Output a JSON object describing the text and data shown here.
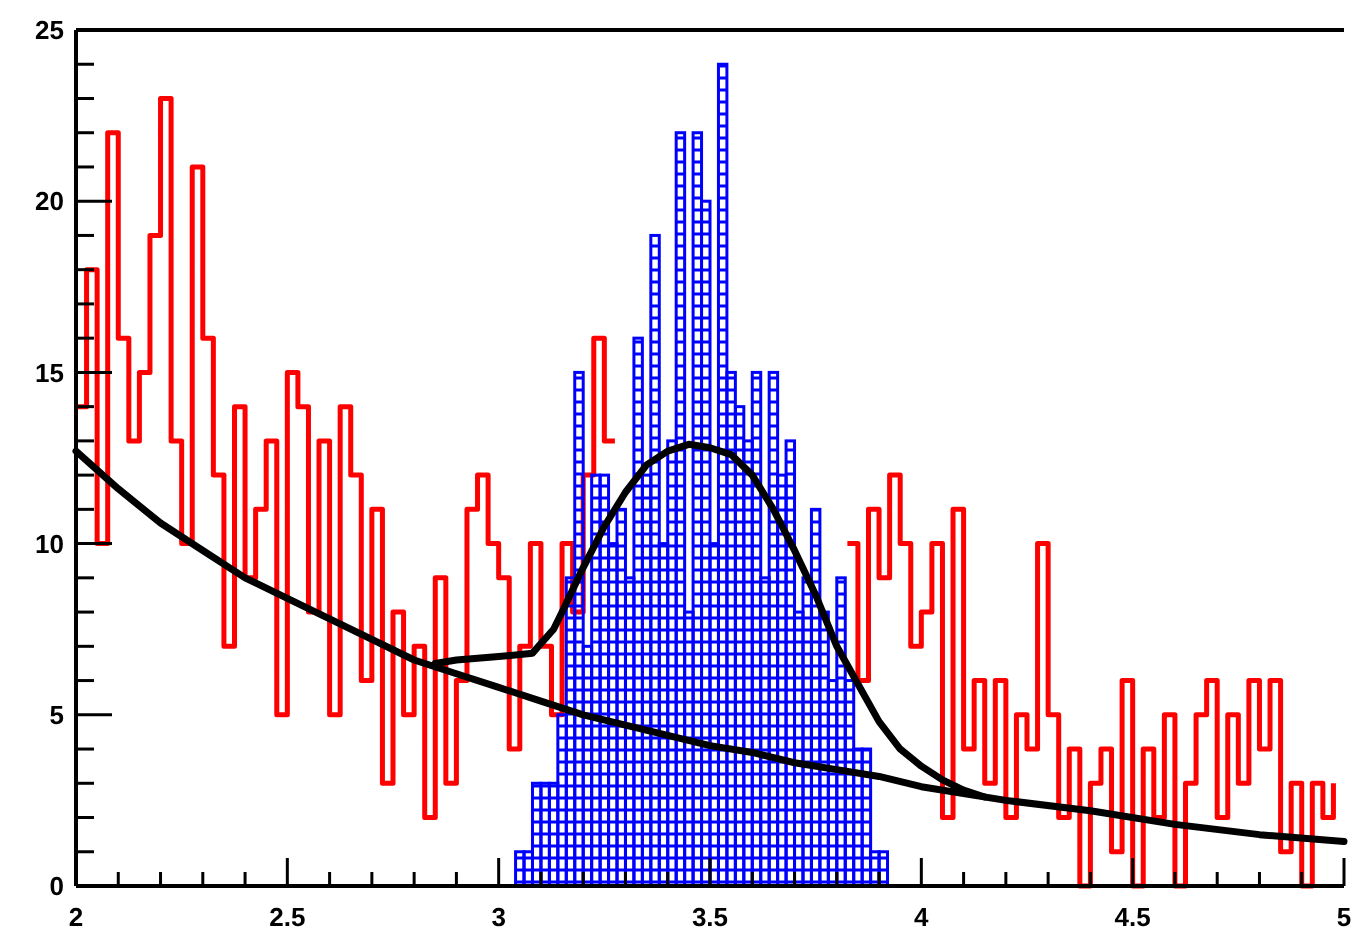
{
  "chart_data": {
    "type": "histogram",
    "xlim": [
      2,
      5
    ],
    "ylim": [
      0,
      25
    ],
    "xticks": [
      {
        "value": 2,
        "label": "2"
      },
      {
        "value": 2.1,
        "label": null
      },
      {
        "value": 2.2,
        "label": null
      },
      {
        "value": 2.3,
        "label": null
      },
      {
        "value": 2.4,
        "label": null
      },
      {
        "value": 2.5,
        "label": "2.5"
      },
      {
        "value": 2.6,
        "label": null
      },
      {
        "value": 2.7,
        "label": null
      },
      {
        "value": 2.8,
        "label": null
      },
      {
        "value": 2.9,
        "label": null
      },
      {
        "value": 3,
        "label": "3"
      },
      {
        "value": 3.1,
        "label": null
      },
      {
        "value": 3.2,
        "label": null
      },
      {
        "value": 3.3,
        "label": null
      },
      {
        "value": 3.4,
        "label": null
      },
      {
        "value": 3.5,
        "label": "3.5"
      },
      {
        "value": 3.6,
        "label": null
      },
      {
        "value": 3.7,
        "label": null
      },
      {
        "value": 3.8,
        "label": null
      },
      {
        "value": 3.9,
        "label": null
      },
      {
        "value": 4,
        "label": "4"
      },
      {
        "value": 4.1,
        "label": null
      },
      {
        "value": 4.2,
        "label": null
      },
      {
        "value": 4.3,
        "label": null
      },
      {
        "value": 4.4,
        "label": null
      },
      {
        "value": 4.5,
        "label": "4.5"
      },
      {
        "value": 4.6,
        "label": null
      },
      {
        "value": 4.7,
        "label": null
      },
      {
        "value": 4.8,
        "label": null
      },
      {
        "value": 4.9,
        "label": null
      },
      {
        "value": 5,
        "label": "5"
      }
    ],
    "yticks": [
      {
        "value": 0,
        "label": "0"
      },
      {
        "value": 1,
        "label": null
      },
      {
        "value": 2,
        "label": null
      },
      {
        "value": 3,
        "label": null
      },
      {
        "value": 4,
        "label": null
      },
      {
        "value": 5,
        "label": "5"
      },
      {
        "value": 6,
        "label": null
      },
      {
        "value": 7,
        "label": null
      },
      {
        "value": 8,
        "label": null
      },
      {
        "value": 9,
        "label": null
      },
      {
        "value": 10,
        "label": "10"
      },
      {
        "value": 11,
        "label": null
      },
      {
        "value": 12,
        "label": null
      },
      {
        "value": 13,
        "label": null
      },
      {
        "value": 14,
        "label": null
      },
      {
        "value": 15,
        "label": "15"
      },
      {
        "value": 16,
        "label": null
      },
      {
        "value": 17,
        "label": null
      },
      {
        "value": 18,
        "label": null
      },
      {
        "value": 19,
        "label": null
      },
      {
        "value": 20,
        "label": "20"
      },
      {
        "value": 21,
        "label": null
      },
      {
        "value": 22,
        "label": null
      },
      {
        "value": 23,
        "label": null
      },
      {
        "value": 24,
        "label": null
      },
      {
        "value": 25,
        "label": "25"
      }
    ],
    "grid": false,
    "series": [
      {
        "type": "step",
        "color": "#ff0000",
        "x": [
          2,
          2.025,
          2.05,
          2.075,
          2.1,
          2.125,
          2.15,
          2.175,
          2.2,
          2.225,
          2.25,
          2.275,
          2.3,
          2.325,
          2.35,
          2.375,
          2.4,
          2.425,
          2.45,
          2.475,
          2.5,
          2.525,
          2.55,
          2.575,
          2.6,
          2.625,
          2.65,
          2.675,
          2.7,
          2.725,
          2.75,
          2.775,
          2.8,
          2.825,
          2.85,
          2.875,
          2.9,
          2.925,
          2.95,
          2.975,
          3,
          3.025,
          3.05,
          3.075,
          3.1,
          3.125,
          3.15,
          3.175,
          3.2,
          3.225,
          3.25,
          3.275,
          3.3,
          3.325,
          3.35,
          3.375,
          3.4,
          3.425,
          3.45,
          3.475,
          3.5,
          3.525,
          3.55,
          3.575,
          3.6,
          3.625,
          3.65,
          3.675,
          3.7,
          3.725,
          3.75,
          3.775,
          3.8,
          3.825,
          3.85,
          3.875,
          3.9,
          3.925,
          3.95,
          3.975,
          4,
          4.025,
          4.05,
          4.075,
          4.1,
          4.125,
          4.15,
          4.175,
          4.2,
          4.225,
          4.25,
          4.275,
          4.3,
          4.325,
          4.35,
          4.375,
          4.4,
          4.425,
          4.45,
          4.475,
          4.5,
          4.525,
          4.55,
          4.575,
          4.6,
          4.625,
          4.65,
          4.675,
          4.7,
          4.725,
          4.75,
          4.775,
          4.8,
          4.825,
          4.85,
          4.875,
          4.9,
          4.925,
          4.95,
          4.975
        ],
        "values": [
          14,
          18,
          10,
          22,
          16,
          13,
          15,
          19,
          23,
          13,
          10,
          21,
          16,
          12,
          7,
          14,
          9,
          11,
          13,
          5,
          15,
          14,
          8,
          13,
          5,
          14,
          12,
          6,
          11,
          3,
          8,
          5,
          7,
          2,
          9,
          3,
          6,
          11,
          12,
          10,
          9,
          4,
          7,
          10,
          7,
          5,
          10,
          8,
          12,
          16,
          13,
          null,
          null,
          null,
          null,
          null,
          null,
          null,
          null,
          null,
          null,
          null,
          null,
          null,
          null,
          null,
          null,
          null,
          null,
          null,
          null,
          null,
          null,
          10,
          6,
          11,
          9,
          12,
          10,
          7,
          8,
          10,
          2,
          11,
          4,
          6,
          3,
          6,
          2,
          5,
          4,
          10,
          5,
          2,
          4,
          0,
          3,
          4,
          1,
          6,
          0,
          4,
          2,
          5,
          0,
          3,
          5,
          6,
          2,
          5,
          3,
          6,
          4,
          6,
          1,
          3,
          0,
          3,
          2,
          3
        ]
      },
      {
        "color": "#0000ff",
        "bins": [
          3.04,
          3.06,
          3.08,
          3.1,
          3.12,
          3.14,
          3.16,
          3.18,
          3.2,
          3.22,
          3.24,
          3.26,
          3.28,
          3.3,
          3.32,
          3.34,
          3.36,
          3.38,
          3.4,
          3.42,
          3.44,
          3.46,
          3.48,
          3.5,
          3.52,
          3.54,
          3.56,
          3.58,
          3.6,
          3.62,
          3.64,
          3.66,
          3.68,
          3.7,
          3.72,
          3.74,
          3.76,
          3.78,
          3.8,
          3.82,
          3.84,
          3.86,
          3.88,
          3.9,
          3.92
        ],
        "values": [
          1,
          1,
          3,
          3,
          3,
          5,
          9,
          15,
          7,
          12,
          12,
          10,
          11,
          9,
          16,
          12,
          19,
          10,
          13,
          22,
          8,
          22,
          20,
          10,
          24,
          15,
          14,
          13,
          15,
          9,
          15,
          12,
          13,
          8,
          9,
          11,
          8,
          6,
          9,
          6,
          4,
          4,
          1,
          1
        ]
      },
      {
        "type": "line",
        "color": "#000000",
        "x": [
          2,
          2.1,
          2.2,
          2.3,
          2.4,
          2.5,
          2.6,
          2.7,
          2.8,
          2.9,
          3,
          3.1,
          3.2,
          3.3,
          3.4,
          3.5,
          3.6,
          3.7,
          3.8,
          3.9,
          4,
          4.2,
          4.4,
          4.6,
          4.8,
          5
        ],
        "values": [
          12.7,
          11.6,
          10.6,
          9.8,
          9,
          8.4,
          7.8,
          7.2,
          6.6,
          6.2,
          5.8,
          5.4,
          5,
          4.7,
          4.4,
          4.1,
          3.9,
          3.6,
          3.4,
          3.2,
          2.9,
          2.5,
          2.2,
          1.8,
          1.5,
          1.3
        ]
      },
      {
        "type": "line",
        "color": "#000000",
        "x": [
          2.85,
          2.9,
          3,
          3.08,
          3.13,
          3.15,
          3.2,
          3.25,
          3.3,
          3.35,
          3.4,
          3.45,
          3.5,
          3.55,
          3.6,
          3.65,
          3.7,
          3.75,
          3.8,
          3.85,
          3.9,
          3.95,
          4,
          4.05,
          4.1,
          4.15
        ],
        "values": [
          6.5,
          6.6,
          6.7,
          6.8,
          7.5,
          8,
          9.3,
          10.5,
          11.5,
          12.3,
          12.7,
          12.9,
          12.8,
          12.6,
          12,
          11,
          9.8,
          8.5,
          7,
          5.9,
          4.8,
          4,
          3.5,
          3.1,
          2.8,
          2.6
        ]
      }
    ]
  }
}
